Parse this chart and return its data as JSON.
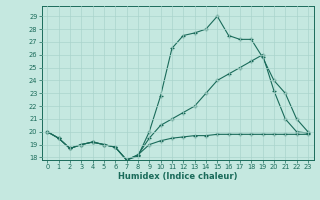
{
  "xlabel": "Humidex (Indice chaleur)",
  "bg_color": "#c5e8e0",
  "line_color": "#1a6b5a",
  "grid_color": "#aad4cc",
  "xlim": [
    -0.5,
    23.5
  ],
  "ylim": [
    17.8,
    29.8
  ],
  "yticks": [
    18,
    19,
    20,
    21,
    22,
    23,
    24,
    25,
    26,
    27,
    28,
    29
  ],
  "xticks": [
    0,
    1,
    2,
    3,
    4,
    5,
    6,
    7,
    8,
    9,
    10,
    11,
    12,
    13,
    14,
    15,
    16,
    17,
    18,
    19,
    20,
    21,
    22,
    23
  ],
  "s1_x": [
    0,
    1,
    2,
    3,
    4,
    5,
    6,
    7,
    8,
    9,
    10,
    11,
    12,
    13,
    14,
    15,
    16,
    17,
    18,
    19,
    20,
    21,
    22,
    23
  ],
  "s1_y": [
    20.0,
    19.5,
    18.7,
    19.0,
    19.2,
    19.0,
    18.8,
    17.8,
    18.1,
    20.0,
    22.8,
    26.5,
    27.5,
    27.7,
    28.0,
    29.0,
    27.5,
    27.2,
    27.2,
    25.8,
    24.0,
    23.0,
    21.0,
    20.0
  ],
  "s2_x": [
    0,
    1,
    2,
    3,
    4,
    5,
    6,
    7,
    8,
    9,
    10,
    11,
    12,
    13,
    14,
    15,
    16,
    17,
    18,
    19,
    20,
    21,
    22,
    23
  ],
  "s2_y": [
    20.0,
    19.5,
    18.7,
    19.0,
    19.2,
    19.0,
    18.8,
    17.8,
    18.2,
    19.5,
    20.5,
    21.0,
    21.5,
    22.0,
    23.0,
    24.0,
    24.5,
    25.0,
    25.5,
    26.0,
    23.2,
    21.0,
    20.0,
    19.9
  ],
  "s3_x": [
    0,
    1,
    2,
    3,
    4,
    5,
    6,
    7,
    8,
    9,
    10,
    11,
    12,
    13,
    14,
    15,
    16,
    17,
    18,
    19,
    20,
    21,
    22,
    23
  ],
  "s3_y": [
    20.0,
    19.5,
    18.7,
    19.0,
    19.2,
    19.0,
    18.8,
    17.8,
    18.2,
    19.0,
    19.3,
    19.5,
    19.6,
    19.7,
    19.7,
    19.8,
    19.8,
    19.8,
    19.8,
    19.8,
    19.8,
    19.8,
    19.8,
    19.8
  ]
}
